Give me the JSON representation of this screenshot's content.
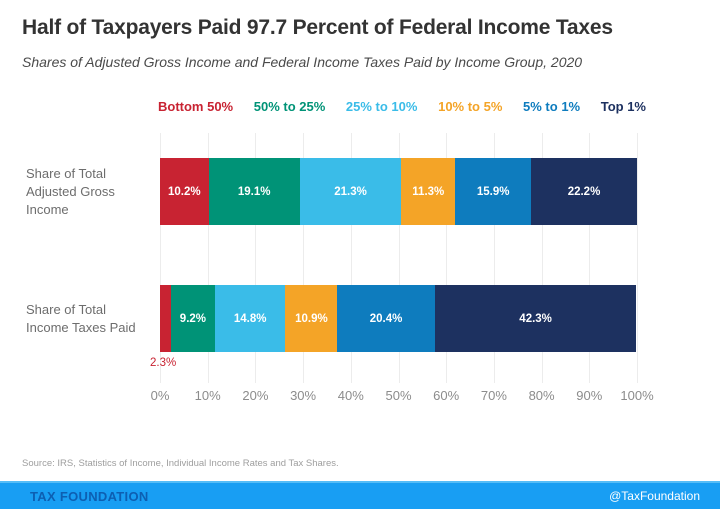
{
  "header": {
    "title": "Half of Taxpayers Paid 97.7 Percent of Federal Income Taxes",
    "subtitle": "Shares of Adjusted Gross Income and Federal Income Taxes Paid by Income Group, 2020"
  },
  "chart_data": {
    "type": "bar",
    "orientation": "horizontal",
    "stacked": true,
    "categories": [
      "Share of Total\nAdjusted Gross\nIncome",
      "Share of Total\nIncome Taxes Paid"
    ],
    "series": [
      {
        "name": "Bottom 50%",
        "color": "#c82332",
        "values": [
          10.2,
          2.3
        ]
      },
      {
        "name": "50% to 25%",
        "color": "#009377",
        "values": [
          19.1,
          9.2
        ]
      },
      {
        "name": "25% to 10%",
        "color": "#3abce8",
        "values": [
          21.3,
          14.8
        ]
      },
      {
        "name": "10% to 5%",
        "color": "#f4a427",
        "values": [
          11.3,
          10.9
        ]
      },
      {
        "name": "5% to 1%",
        "color": "#0e7cbe",
        "values": [
          15.9,
          20.4
        ]
      },
      {
        "name": "Top 1%",
        "color": "#1d3160",
        "values": [
          22.2,
          42.3
        ]
      }
    ],
    "value_label_format": "percent_one_decimal",
    "xticks": [
      "0%",
      "10%",
      "20%",
      "30%",
      "40%",
      "50%",
      "60%",
      "70%",
      "80%",
      "90%",
      "100%"
    ],
    "xlim": [
      0,
      100
    ],
    "grid": true,
    "legend_position": "top",
    "annotations": [
      {
        "text": "2.3%",
        "row": 1,
        "color": "#c82332",
        "position": "below-left"
      }
    ]
  },
  "colors": {
    "grid": "#ececec",
    "axis_text": "#8c8c8c",
    "category_text": "#6d6d6d",
    "footer_bar": "#189ef3",
    "footer_brand_text": "#0d5fb2"
  },
  "footer": {
    "source": "Source: IRS, Statistics of Income, Individual Income Rates and Tax Shares.",
    "brand": "TAX FOUNDATION",
    "handle": "@TaxFoundation"
  }
}
